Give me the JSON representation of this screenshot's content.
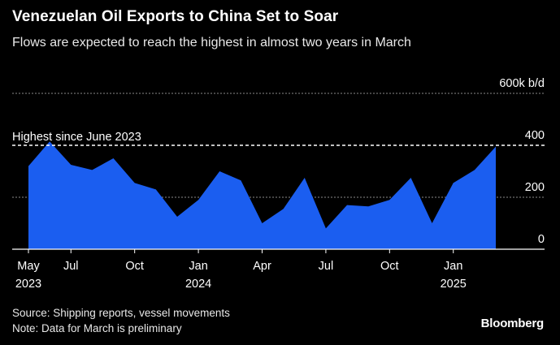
{
  "title": "Venezuelan Oil Exports to China Set to Soar",
  "subtitle": "Flows are expected to reach the highest in almost two years in March",
  "source": "Source: Shipping reports, vessel movements",
  "note": "Note: Data for March is preliminary",
  "brand": "Bloomberg",
  "colors": {
    "area": "#1B5EF0",
    "background": "#000000",
    "grid": "#8a8a8a",
    "text": "#ffffff"
  },
  "chart_data": {
    "type": "area",
    "unit": "600k b/d",
    "ylim": [
      0,
      600
    ],
    "yticks": [
      0,
      200,
      400,
      600
    ],
    "ytick_labels": [
      "0",
      "200",
      "400",
      "600k b/d"
    ],
    "x": [
      "2023-05",
      "2023-06",
      "2023-07",
      "2023-08",
      "2023-09",
      "2023-10",
      "2023-11",
      "2023-12",
      "2024-01",
      "2024-02",
      "2024-03",
      "2024-04",
      "2024-05",
      "2024-06",
      "2024-07",
      "2024-08",
      "2024-09",
      "2024-10",
      "2024-11",
      "2024-12",
      "2025-01",
      "2025-02",
      "2025-03"
    ],
    "values": [
      320,
      415,
      325,
      305,
      350,
      255,
      230,
      125,
      190,
      300,
      265,
      100,
      155,
      275,
      80,
      170,
      165,
      190,
      275,
      100,
      255,
      305,
      395
    ],
    "xtick_labels": [
      {
        "month": "2023-05",
        "label": "May",
        "year": "2023"
      },
      {
        "month": "2023-07",
        "label": "Jul",
        "year": ""
      },
      {
        "month": "2023-10",
        "label": "Oct",
        "year": ""
      },
      {
        "month": "2024-01",
        "label": "Jan",
        "year": "2024"
      },
      {
        "month": "2024-04",
        "label": "Apr",
        "year": ""
      },
      {
        "month": "2024-07",
        "label": "Jul",
        "year": ""
      },
      {
        "month": "2024-10",
        "label": "Oct",
        "year": ""
      },
      {
        "month": "2025-01",
        "label": "Jan",
        "year": "2025"
      }
    ],
    "reference_line": {
      "value": 400,
      "label": "Highest since June 2023"
    },
    "grid": true
  }
}
